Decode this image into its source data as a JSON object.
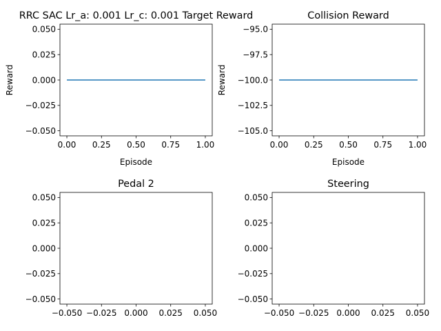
{
  "chart_data": [
    {
      "type": "line",
      "title": "RRC SAC Lr_a: 0.001 Lr_c: 0.001 Target Reward",
      "xlabel": "Episode",
      "ylabel": "Reward",
      "xlim": [
        -0.05,
        1.05
      ],
      "ylim": [
        -0.055,
        0.055
      ],
      "xticks": [
        "0.00",
        "0.25",
        "0.50",
        "0.75",
        "1.00"
      ],
      "yticks": [
        "0.050",
        "0.025",
        "0.000",
        "−0.025",
        "−0.050"
      ],
      "grid": false,
      "series": [
        {
          "x": [
            0,
            1
          ],
          "y": [
            0,
            0
          ],
          "color": "#1f77b4"
        }
      ]
    },
    {
      "type": "line",
      "title": "Collision Reward",
      "xlabel": "Episode",
      "ylabel": "Reward",
      "xlim": [
        -0.05,
        1.05
      ],
      "ylim": [
        -105.5,
        -94.5
      ],
      "xticks": [
        "0.00",
        "0.25",
        "0.50",
        "0.75",
        "1.00"
      ],
      "yticks": [
        "−95.0",
        "−97.5",
        "−100.0",
        "−102.5",
        "−105.0"
      ],
      "grid": false,
      "series": [
        {
          "x": [
            0,
            1
          ],
          "y": [
            -100,
            -100
          ],
          "color": "#1f77b4"
        }
      ]
    },
    {
      "type": "line",
      "title": "Pedal 2",
      "xlabel": "",
      "ylabel": "",
      "xlim": [
        -0.055,
        0.055
      ],
      "ylim": [
        -0.055,
        0.055
      ],
      "xticks": [
        "−0.050",
        "−0.025",
        "0.000",
        "0.025",
        "0.050"
      ],
      "yticks": [
        "0.050",
        "0.025",
        "0.000",
        "−0.025",
        "−0.050"
      ],
      "grid": false,
      "series": []
    },
    {
      "type": "line",
      "title": "Steering",
      "xlabel": "",
      "ylabel": "",
      "xlim": [
        -0.055,
        0.055
      ],
      "ylim": [
        -0.055,
        0.055
      ],
      "xticks": [
        "−0.050",
        "−0.025",
        "0.000",
        "0.025",
        "0.050"
      ],
      "yticks": [
        "0.050",
        "0.025",
        "0.000",
        "−0.025",
        "−0.050"
      ],
      "grid": false,
      "series": []
    }
  ]
}
